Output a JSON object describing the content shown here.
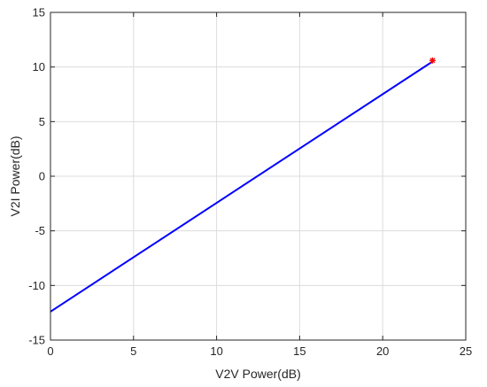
{
  "chart_data": {
    "type": "line",
    "xlabel": "V2V Power(dB)",
    "ylabel": "V2I Power(dB)",
    "xlim": [
      0,
      25
    ],
    "ylim": [
      -15,
      15
    ],
    "xticks": [
      0,
      5,
      10,
      15,
      20,
      25
    ],
    "yticks": [
      -15,
      -10,
      -5,
      0,
      5,
      10,
      15
    ],
    "grid": true,
    "series": [
      {
        "color": "#0000ff",
        "marker": "none",
        "x": [
          0,
          23
        ],
        "y": [
          -12.4,
          10.5
        ]
      },
      {
        "color": "#ff0000",
        "marker": "asterisk",
        "x": [
          23
        ],
        "y": [
          10.6
        ]
      }
    ]
  }
}
